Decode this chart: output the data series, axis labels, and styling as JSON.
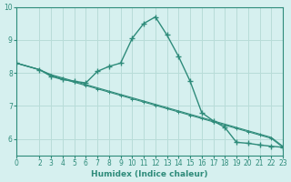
{
  "xlabel": "Humidex (Indice chaleur)",
  "background_color": "#d6f0ef",
  "grid_color": "#b8dcd8",
  "line_color": "#2e8b7a",
  "xlim": [
    0,
    23
  ],
  "ylim": [
    5.5,
    10.0
  ],
  "yticks": [
    6,
    7,
    8,
    9,
    10
  ],
  "xticks": [
    0,
    2,
    3,
    4,
    5,
    6,
    7,
    8,
    9,
    10,
    11,
    12,
    13,
    14,
    15,
    16,
    17,
    18,
    19,
    20,
    21,
    22,
    23
  ],
  "series1_x": [
    0,
    2,
    3,
    4,
    5,
    6,
    7,
    8,
    9,
    10,
    11,
    12,
    13,
    14,
    15,
    16,
    17,
    18,
    19,
    20,
    21,
    22,
    23
  ],
  "series1_y": [
    8.3,
    8.1,
    7.9,
    7.8,
    7.75,
    7.7,
    8.05,
    8.2,
    8.3,
    9.05,
    9.5,
    9.7,
    9.15,
    8.5,
    7.75,
    6.8,
    6.55,
    6.35,
    5.9,
    5.87,
    5.82,
    5.78,
    5.75
  ],
  "series2_x": [
    0,
    2,
    3,
    4,
    5,
    6,
    7,
    8,
    9,
    10,
    11,
    12,
    13,
    14,
    15,
    16,
    17,
    18,
    19,
    20,
    21,
    22,
    23
  ],
  "series2_y": [
    8.3,
    8.1,
    7.95,
    7.85,
    7.75,
    7.65,
    7.55,
    7.45,
    7.35,
    7.25,
    7.15,
    7.05,
    6.95,
    6.85,
    6.75,
    6.65,
    6.55,
    6.45,
    6.35,
    6.25,
    6.15,
    6.05,
    5.78
  ],
  "series3_x": [
    0,
    2,
    3,
    4,
    5,
    6,
    7,
    8,
    9,
    10,
    11,
    12,
    13,
    14,
    15,
    16,
    17,
    18,
    19,
    20,
    21,
    22,
    23
  ],
  "series3_y": [
    8.3,
    8.1,
    7.93,
    7.82,
    7.72,
    7.62,
    7.52,
    7.42,
    7.32,
    7.22,
    7.12,
    7.02,
    6.92,
    6.82,
    6.72,
    6.62,
    6.52,
    6.42,
    6.32,
    6.22,
    6.12,
    6.02,
    5.75
  ]
}
